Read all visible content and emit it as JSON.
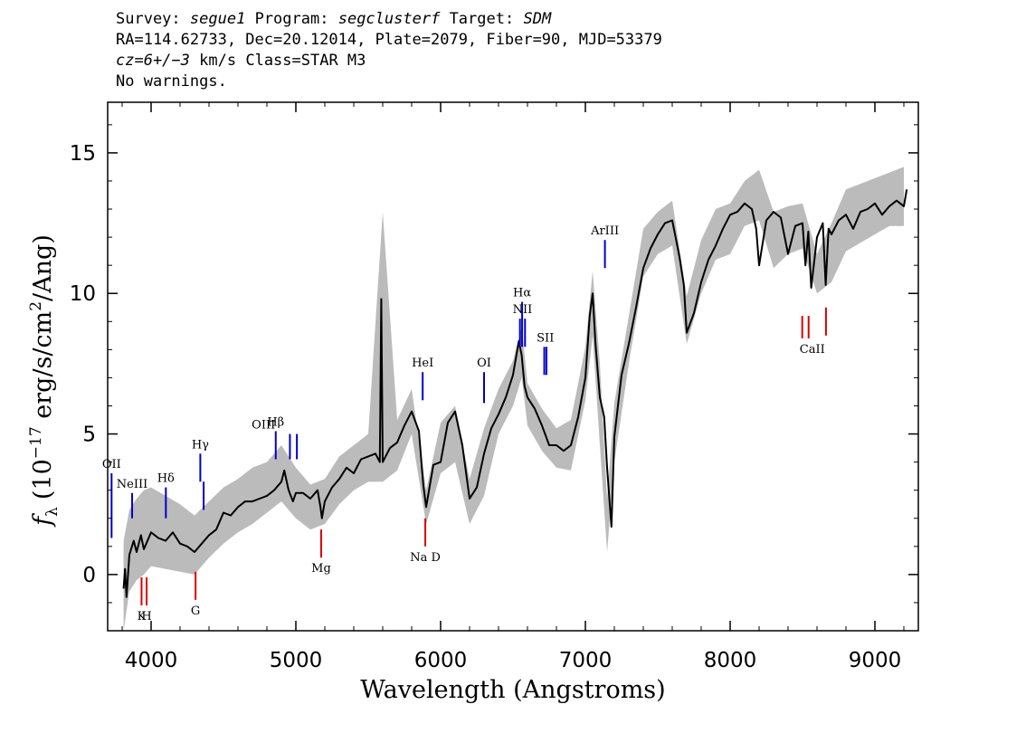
{
  "header": {
    "line1": {
      "survey_label": "Survey:",
      "survey": "segue1",
      "program_label": "Program:",
      "program": "segclusterf",
      "target_label": "Target:",
      "target": "SDM"
    },
    "line2": "RA=114.62733, Dec=20.12014, Plate=2079, Fiber=90, MJD=53379",
    "line3": {
      "redshift": "cz=6+/−3",
      "redshift_unit": "km/s",
      "class_text": "Class=STAR M3"
    },
    "line4": "No warnings."
  },
  "chart_data": {
    "type": "line",
    "title": "",
    "xlabel": "Wavelength (Angstroms)",
    "ylabel": "f_λ (10^-17 erg/s/cm^2/Ang)",
    "ylabel_parts": {
      "symbol": "f",
      "subscript": "λ",
      "pre": "(10",
      "exp1": "−17",
      "mid": " erg/s/cm",
      "exp2": "2",
      "post": "/Ang)"
    },
    "xlim": [
      3700,
      9300
    ],
    "ylim": [
      -2.0,
      16.8
    ],
    "x_ticks": [
      4000,
      5000,
      6000,
      7000,
      8000,
      9000
    ],
    "x_tick_labels": [
      "4000",
      "5000",
      "6000",
      "7000",
      "8000",
      "9000"
    ],
    "y_ticks": [
      0,
      5,
      10,
      15
    ],
    "y_tick_labels": [
      "0",
      "5",
      "10",
      "15"
    ],
    "grid": false,
    "series": [
      {
        "role": "error band",
        "color": "#bbbbbb",
        "x": [
          3810,
          3850,
          3900,
          3950,
          4000,
          4100,
          4200,
          4300,
          4400,
          4500,
          4600,
          4700,
          4800,
          4900,
          5000,
          5100,
          5200,
          5300,
          5400,
          5500,
          5600,
          5700,
          5800,
          5900,
          6000,
          6100,
          6200,
          6300,
          6400,
          6500,
          6560,
          6600,
          6700,
          6800,
          6900,
          7000,
          7050,
          7100,
          7150,
          7200,
          7300,
          7400,
          7500,
          7600,
          7700,
          7800,
          7900,
          8000,
          8100,
          8200,
          8300,
          8400,
          8500,
          8600,
          8700,
          8800,
          8900,
          9000,
          9100,
          9200
        ],
        "y_low": [
          -2.0,
          -0.6,
          -0.2,
          0.0,
          0.3,
          0.2,
          0.1,
          0.0,
          0.6,
          1.1,
          1.5,
          1.8,
          2.2,
          2.6,
          2.0,
          1.6,
          1.8,
          2.5,
          3.0,
          3.3,
          3.3,
          3.7,
          5.0,
          1.8,
          3.6,
          4.0,
          1.8,
          2.8,
          5.0,
          6.0,
          7.0,
          5.3,
          4.4,
          3.8,
          3.7,
          6.2,
          8.5,
          4.6,
          0.8,
          4.0,
          7.5,
          10.6,
          11.4,
          11.7,
          8.2,
          10.0,
          11.2,
          11.4,
          12.4,
          12.6,
          10.9,
          11.4,
          11.6,
          10.0,
          10.4,
          11.5,
          11.8,
          12.1,
          12.4,
          12.4
        ],
        "y_high": [
          1.2,
          2.3,
          2.7,
          3.0,
          3.1,
          2.8,
          2.5,
          2.1,
          2.6,
          3.1,
          3.4,
          3.8,
          4.0,
          4.6,
          3.8,
          3.2,
          3.4,
          4.2,
          4.6,
          5.0,
          12.9,
          5.5,
          6.6,
          3.0,
          5.4,
          6.0,
          3.4,
          5.2,
          6.6,
          7.6,
          8.8,
          6.8,
          5.9,
          5.2,
          5.5,
          8.1,
          10.8,
          7.5,
          2.7,
          6.1,
          9.2,
          12.3,
          12.9,
          13.3,
          9.9,
          11.9,
          13.0,
          13.2,
          14.0,
          14.4,
          12.9,
          13.1,
          13.2,
          11.4,
          12.5,
          13.7,
          13.9,
          14.1,
          14.3,
          14.5
        ]
      },
      {
        "role": "flux",
        "color": "#000000",
        "x": [
          3810,
          3820,
          3830,
          3850,
          3880,
          3900,
          3930,
          3950,
          4000,
          4050,
          4100,
          4150,
          4200,
          4250,
          4300,
          4350,
          4400,
          4450,
          4500,
          4550,
          4600,
          4650,
          4700,
          4750,
          4800,
          4850,
          4900,
          4920,
          4950,
          4980,
          5000,
          5050,
          5100,
          5150,
          5170,
          5180,
          5200,
          5250,
          5300,
          5350,
          5400,
          5450,
          5500,
          5550,
          5580,
          5590,
          5600,
          5650,
          5700,
          5750,
          5800,
          5850,
          5880,
          5900,
          5950,
          6000,
          6050,
          6100,
          6150,
          6200,
          6250,
          6300,
          6350,
          6400,
          6450,
          6500,
          6540,
          6560,
          6580,
          6600,
          6650,
          6700,
          6750,
          6800,
          6850,
          6900,
          6950,
          7000,
          7030,
          7050,
          7070,
          7100,
          7130,
          7150,
          7180,
          7200,
          7250,
          7300,
          7350,
          7400,
          7450,
          7500,
          7550,
          7600,
          7650,
          7680,
          7700,
          7750,
          7800,
          7850,
          7900,
          7950,
          8000,
          8050,
          8100,
          8150,
          8180,
          8200,
          8250,
          8300,
          8350,
          8400,
          8450,
          8500,
          8520,
          8540,
          8560,
          8600,
          8640,
          8660,
          8680,
          8700,
          8750,
          8800,
          8850,
          8900,
          8950,
          9000,
          9050,
          9100,
          9150,
          9200,
          9220
        ],
        "y": [
          -0.5,
          0.2,
          -0.8,
          0.7,
          1.2,
          0.8,
          1.4,
          0.9,
          1.5,
          1.3,
          1.2,
          1.5,
          1.1,
          1.0,
          0.8,
          1.1,
          1.4,
          1.6,
          2.2,
          2.1,
          2.4,
          2.6,
          2.6,
          2.7,
          2.8,
          3.0,
          3.3,
          3.7,
          3.0,
          2.6,
          2.9,
          2.9,
          2.7,
          3.0,
          2.4,
          2.0,
          2.6,
          3.1,
          3.4,
          3.8,
          3.6,
          4.1,
          4.2,
          4.3,
          4.0,
          9.8,
          4.0,
          4.5,
          4.7,
          5.3,
          5.8,
          5.1,
          3.2,
          2.4,
          3.9,
          4.0,
          5.4,
          5.8,
          4.6,
          2.7,
          3.1,
          4.3,
          5.2,
          5.7,
          6.3,
          7.1,
          8.3,
          7.8,
          6.7,
          6.3,
          5.9,
          5.3,
          4.6,
          4.6,
          4.4,
          4.6,
          5.6,
          7.0,
          9.2,
          10.0,
          8.2,
          6.3,
          5.6,
          3.8,
          1.7,
          4.9,
          7.1,
          8.2,
          9.5,
          10.9,
          11.6,
          12.1,
          12.5,
          12.6,
          11.3,
          10.3,
          8.6,
          9.3,
          10.4,
          11.2,
          11.7,
          12.3,
          12.8,
          12.9,
          13.2,
          13.0,
          12.3,
          11.0,
          12.6,
          12.9,
          12.7,
          11.4,
          12.4,
          12.5,
          11.0,
          12.2,
          10.2,
          12.0,
          12.5,
          10.3,
          12.3,
          12.1,
          12.6,
          12.8,
          12.3,
          12.9,
          13.0,
          13.2,
          12.8,
          13.1,
          13.3,
          13.1,
          13.7
        ]
      }
    ],
    "line_markers": {
      "emission": [
        {
          "label": "OII",
          "x": 3727,
          "y_top": 3.6,
          "y_bottom": 1.3
        },
        {
          "label": "NeIII",
          "x": 3869,
          "y_top": 2.9,
          "y_bottom": 2.0
        },
        {
          "label": "Hδ",
          "x": 4102,
          "y_top": 3.1,
          "y_bottom": 2.0
        },
        {
          "label": "Hγ",
          "x": 4340,
          "y_top": 4.3,
          "y_bottom": 3.3
        },
        {
          "label": "OIII",
          "x": 4363,
          "y_top": 3.3,
          "y_bottom": 2.3
        },
        {
          "label": "Hβ",
          "x": 4861,
          "y_top": 5.1,
          "y_bottom": 4.1
        },
        {
          "label": "OIII",
          "x": 4959,
          "y_top": 5.0,
          "y_bottom": 4.1
        },
        {
          "label": "OIII",
          "x": 5007,
          "y_top": 5.0,
          "y_bottom": 4.1
        },
        {
          "label": "HeI",
          "x": 5876,
          "y_top": 7.2,
          "y_bottom": 6.2
        },
        {
          "label": "OI",
          "x": 6300,
          "y_top": 7.2,
          "y_bottom": 6.1
        },
        {
          "label": "NII",
          "x": 6548,
          "y_top": 9.1,
          "y_bottom": 8.1
        },
        {
          "label": "Hα",
          "x": 6563,
          "y_top": 9.7,
          "y_bottom": 8.1
        },
        {
          "label": "NII",
          "x": 6583,
          "y_top": 9.1,
          "y_bottom": 8.1
        },
        {
          "label": "SII",
          "x": 6716,
          "y_top": 8.1,
          "y_bottom": 7.1
        },
        {
          "label": "SII",
          "x": 6731,
          "y_top": 8.1,
          "y_bottom": 7.1
        },
        {
          "label": "ArIII",
          "x": 7135,
          "y_top": 11.9,
          "y_bottom": 10.9
        }
      ],
      "absorption": [
        {
          "label": "K",
          "x": 3934,
          "y_top": -0.1,
          "y_bottom": -1.1
        },
        {
          "label": "H",
          "x": 3969,
          "y_top": -0.1,
          "y_bottom": -1.1
        },
        {
          "label": "G",
          "x": 4307,
          "y_top": 0.1,
          "y_bottom": -0.9
        },
        {
          "label": "Mg",
          "x": 5175,
          "y_top": 1.6,
          "y_bottom": 0.6
        },
        {
          "label": "Na D",
          "x": 5894,
          "y_top": 2.0,
          "y_bottom": 1.0
        },
        {
          "label": "CaII",
          "x": 8498,
          "y_top": 9.2,
          "y_bottom": 8.4
        },
        {
          "label": "CaII",
          "x": 8542,
          "y_top": 9.2,
          "y_bottom": 8.4
        },
        {
          "label": "CaII",
          "x": 8662,
          "y_top": 9.5,
          "y_bottom": 8.5
        }
      ]
    },
    "colors": {
      "emission": "#0000cc",
      "absorption": "#dd0000"
    }
  }
}
